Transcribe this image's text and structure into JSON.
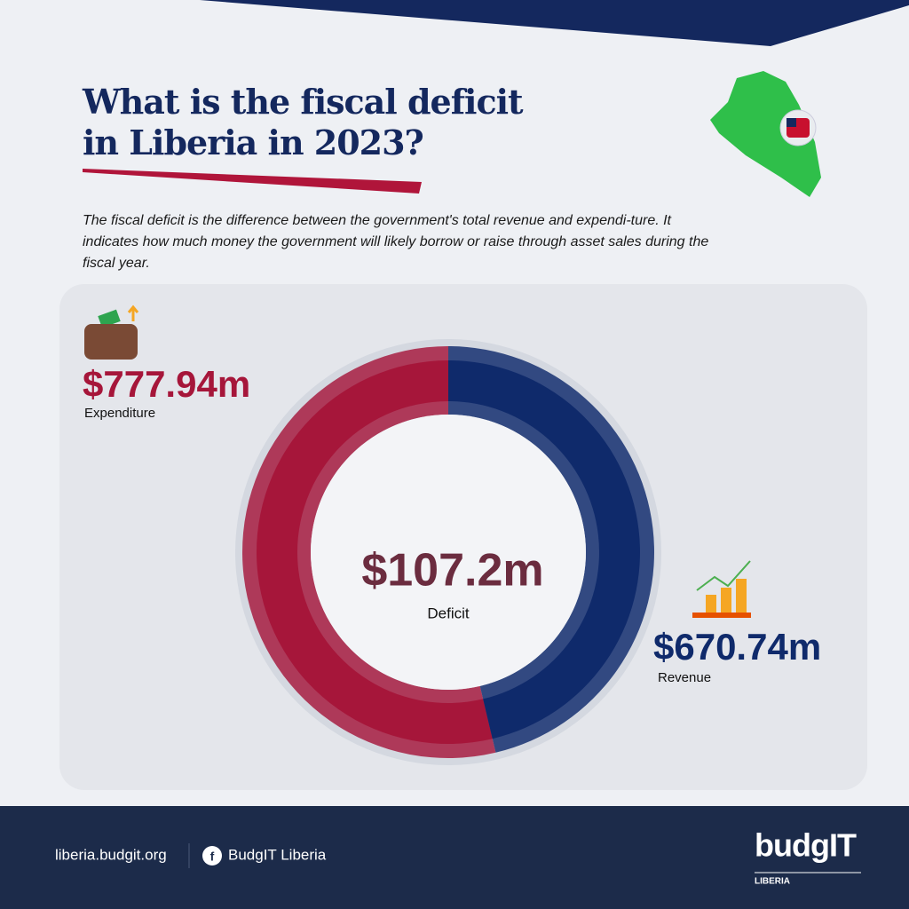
{
  "chart_data": {
    "type": "pie",
    "title": "What is the fiscal deficit in Liberia in 2023?",
    "subtitle": "The fiscal deficit is the difference between the government's total revenue and expendi-ture. It indicates how much money the government will likely borrow or raise through asset sales during the fiscal year.",
    "categories": [
      "Expenditure",
      "Revenue"
    ],
    "values": [
      777.94,
      670.74
    ],
    "value_labels": [
      "$777.94m",
      "$670.74m"
    ],
    "colors": [
      "#a6163a",
      "#0f2a6b"
    ],
    "center_label": "$107.2m",
    "center_caption": "Deficit"
  },
  "footer": {
    "website": "liberia.budgit.org",
    "facebook": "BudgIT Liberia",
    "logo": "budgIT",
    "logo_sub": "LIBERIA"
  }
}
